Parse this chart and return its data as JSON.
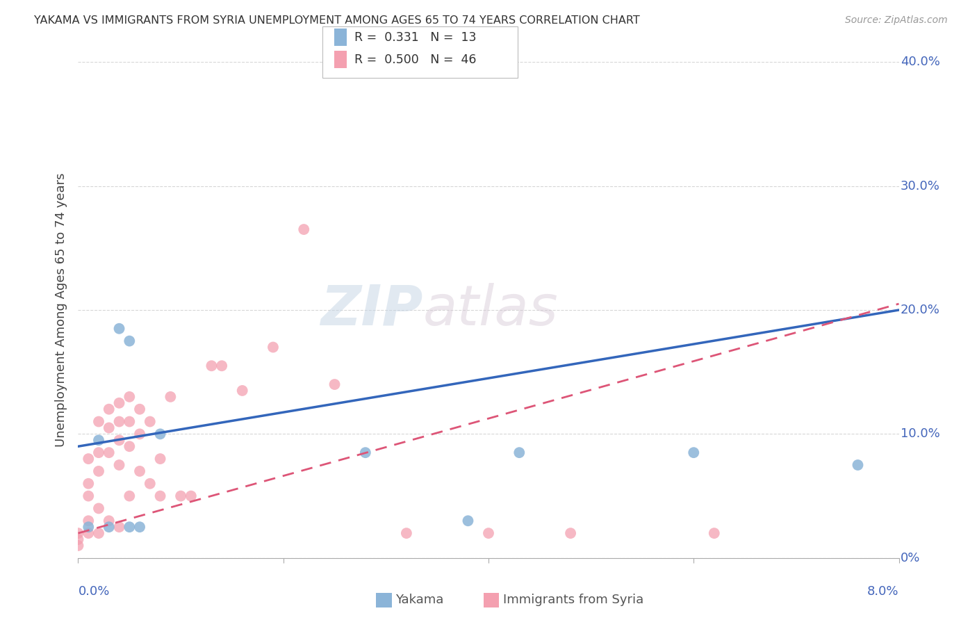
{
  "title": "YAKAMA VS IMMIGRANTS FROM SYRIA UNEMPLOYMENT AMONG AGES 65 TO 74 YEARS CORRELATION CHART",
  "source": "Source: ZipAtlas.com",
  "ylabel": "Unemployment Among Ages 65 to 74 years",
  "legend_r1": "R =  0.331",
  "legend_n1": "N =  13",
  "legend_r2": "R =  0.500",
  "legend_n2": "N =  46",
  "legend_label1": "Yakama",
  "legend_label2": "Immigrants from Syria",
  "blue_color": "#8BB4D8",
  "pink_color": "#F4A0B0",
  "blue_line_color": "#3366BB",
  "pink_line_color": "#DD5577",
  "watermark_zip": "ZIP",
  "watermark_atlas": "atlas",
  "background_color": "#FFFFFF",
  "xlim": [
    0.0,
    0.08
  ],
  "ylim": [
    0.0,
    0.4
  ],
  "blue_line_x0": 0.0,
  "blue_line_y0": 0.09,
  "blue_line_x1": 0.08,
  "blue_line_y1": 0.2,
  "pink_line_x0": 0.0,
  "pink_line_y0": 0.02,
  "pink_line_x1": 0.08,
  "pink_line_y1": 0.205,
  "yakama_x": [
    0.001,
    0.002,
    0.003,
    0.004,
    0.005,
    0.005,
    0.006,
    0.008,
    0.028,
    0.038,
    0.043,
    0.06,
    0.076
  ],
  "yakama_y": [
    0.025,
    0.095,
    0.025,
    0.185,
    0.025,
    0.175,
    0.025,
    0.1,
    0.085,
    0.03,
    0.085,
    0.085,
    0.075
  ],
  "syria_x": [
    0.0,
    0.0,
    0.0,
    0.001,
    0.001,
    0.001,
    0.001,
    0.001,
    0.002,
    0.002,
    0.002,
    0.002,
    0.002,
    0.003,
    0.003,
    0.003,
    0.003,
    0.004,
    0.004,
    0.004,
    0.004,
    0.004,
    0.005,
    0.005,
    0.005,
    0.005,
    0.006,
    0.006,
    0.006,
    0.007,
    0.007,
    0.008,
    0.008,
    0.009,
    0.01,
    0.011,
    0.013,
    0.014,
    0.016,
    0.019,
    0.022,
    0.025,
    0.032,
    0.04,
    0.048,
    0.062
  ],
  "syria_y": [
    0.02,
    0.015,
    0.01,
    0.08,
    0.06,
    0.05,
    0.03,
    0.02,
    0.11,
    0.085,
    0.07,
    0.04,
    0.02,
    0.12,
    0.105,
    0.085,
    0.03,
    0.125,
    0.11,
    0.095,
    0.075,
    0.025,
    0.13,
    0.11,
    0.09,
    0.05,
    0.12,
    0.1,
    0.07,
    0.11,
    0.06,
    0.08,
    0.05,
    0.13,
    0.05,
    0.05,
    0.155,
    0.155,
    0.135,
    0.17,
    0.265,
    0.14,
    0.02,
    0.02,
    0.02,
    0.02
  ],
  "grid_color": "#CCCCCC",
  "tick_label_color": "#4466BB",
  "title_color": "#333333",
  "source_color": "#999999",
  "ylabel_color": "#444444"
}
